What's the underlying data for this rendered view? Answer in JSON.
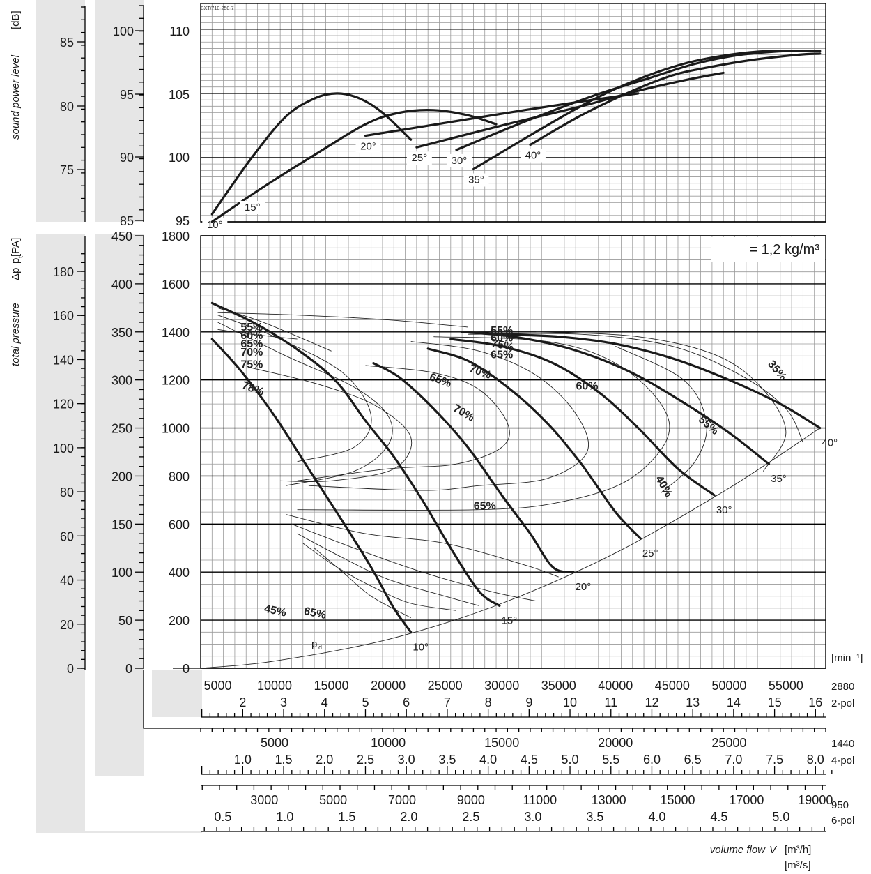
{
  "chart_data": {
    "type": "line",
    "code": "BXT/710-250-7",
    "density_note": "= 1,2 kg/m³",
    "sound_axis_title": "sound power level",
    "sound_axis_unit": "[dB]",
    "pressure_axis_title": "total pressure",
    "pressure_axis_symbol": "Δp",
    "pressure_axis_sub": "t",
    "pressure_axis_unit": "[PA]",
    "flow_axis_title": "volume flow",
    "flow_axis_symbol": "V",
    "flow_unit_h": "[m³/h]",
    "flow_unit_s": "[m³/s]",
    "rpm_unit": "[min⁻¹]",
    "pd_label": "p",
    "pd_sub": "d",
    "sound_scales": [
      {
        "ticks": [
          "85",
          "80",
          "75"
        ]
      },
      {
        "ticks": [
          "100",
          "95",
          "90",
          "85"
        ]
      },
      {
        "ticks": [
          "110",
          "105",
          "100",
          "95"
        ]
      }
    ],
    "pressure_scales": [
      {
        "ticks": [
          "180",
          "160",
          "140",
          "120",
          "100",
          "80",
          "60",
          "40",
          "20",
          "0"
        ]
      },
      {
        "ticks": [
          "450",
          "400",
          "350",
          "300",
          "250",
          "200",
          "150",
          "100",
          "50",
          "0"
        ]
      },
      {
        "ticks": [
          "1800",
          "1600",
          "1400",
          "1200",
          "1000",
          "800",
          "600",
          "400",
          "200",
          "0"
        ]
      }
    ],
    "flow_scales": [
      {
        "rpm": "2880",
        "poles": "2-pol",
        "m3h": [
          "5000",
          "10000",
          "15000",
          "20000",
          "25000",
          "30000",
          "35000",
          "40000",
          "45000",
          "50000",
          "55000"
        ],
        "m3s": [
          "2",
          "3",
          "4",
          "5",
          "6",
          "7",
          "8",
          "9",
          "10",
          "11",
          "12",
          "13",
          "14",
          "15",
          "16"
        ]
      },
      {
        "rpm": "1440",
        "poles": "4-pol",
        "m3h": [
          "5000",
          "10000",
          "15000",
          "20000",
          "25000"
        ],
        "m3s": [
          "1.0",
          "1.5",
          "2.0",
          "2.5",
          "3.0",
          "3.5",
          "4.0",
          "4.5",
          "5.0",
          "5.5",
          "6.0",
          "6.5",
          "7.0",
          "7.5",
          "8.0"
        ]
      },
      {
        "rpm": "950",
        "poles": "6-pol",
        "m3h": [
          "3000",
          "5000",
          "7000",
          "9000",
          "11000",
          "13000",
          "15000",
          "17000",
          "19000"
        ],
        "m3s": [
          "0.5",
          "1.0",
          "1.5",
          "2.0",
          "2.5",
          "3.0",
          "3.5",
          "4.0",
          "4.5",
          "5.0"
        ]
      }
    ],
    "x_label": "volume flow (2-pole, m³/h)",
    "x_range": [
      3500,
      58500
    ],
    "pressure_range_pa": [
      0,
      1800
    ],
    "sound_range_db": [
      95,
      112
    ],
    "pressure_curves": [
      {
        "name": "10°",
        "x": [
          4500,
          7000,
          10000,
          13000,
          16000,
          18500,
          20500,
          22000
        ],
        "y": [
          1370,
          1240,
          1050,
          830,
          610,
          420,
          250,
          150
        ]
      },
      {
        "name": "15°",
        "x": [
          4500,
          8500,
          12500,
          15500,
          18000,
          20500,
          23000,
          25500,
          28000,
          29800
        ],
        "y": [
          1520,
          1430,
          1310,
          1190,
          1030,
          880,
          700,
          500,
          320,
          260
        ]
      },
      {
        "name": "20°",
        "x": [
          18700,
          21000,
          24000,
          27000,
          30000,
          32500,
          34500,
          36300
        ],
        "y": [
          1270,
          1210,
          1080,
          920,
          720,
          560,
          420,
          400
        ]
      },
      {
        "name": "25°",
        "x": [
          23500,
          27000,
          30500,
          34000,
          37000,
          40000,
          42200
        ],
        "y": [
          1330,
          1280,
          1170,
          1020,
          850,
          650,
          540
        ]
      },
      {
        "name": "30°",
        "x": [
          25500,
          30000,
          34500,
          38500,
          42000,
          45500,
          48700
        ],
        "y": [
          1370,
          1340,
          1270,
          1150,
          1000,
          830,
          720
        ]
      },
      {
        "name": "35°",
        "x": [
          26500,
          31000,
          36000,
          41000,
          45500,
          50000,
          53500
        ],
        "y": [
          1400,
          1380,
          1330,
          1240,
          1120,
          980,
          850
        ]
      },
      {
        "name": "40°",
        "x": [
          26500,
          30000,
          35000,
          40000,
          45000,
          50000,
          54500,
          58000
        ],
        "y": [
          1400,
          1390,
          1380,
          1350,
          1290,
          1200,
          1100,
          1000
        ]
      }
    ],
    "efficiency_labels": [
      "55%",
      "60%",
      "65%",
      "70%",
      "75%",
      "78%",
      "65%",
      "70%",
      "75%",
      "55%",
      "60%",
      "65%",
      "70%",
      "65%",
      "60%",
      "55%",
      "35%",
      "40%",
      "45%",
      "65%"
    ],
    "pd_curve": {
      "x": [
        3500,
        10000,
        20000,
        30000,
        40000,
        50000,
        58000
      ],
      "y": [
        0,
        30,
        120,
        270,
        480,
        750,
        1000
      ]
    },
    "sound_curves": [
      {
        "name": "10°",
        "x": [
          4500,
          8000,
          11000,
          13500,
          15500,
          17500,
          19500,
          22000
        ],
        "y": [
          95.6,
          100,
          103.2,
          104.6,
          105,
          104.6,
          103.5,
          101.4
        ]
      },
      {
        "name": "15°",
        "x": [
          4500,
          9000,
          13500,
          18000,
          21000,
          24000,
          27000,
          29500
        ],
        "y": [
          95,
          97.7,
          100.2,
          102.6,
          103.5,
          103.7,
          103.3,
          102.6
        ]
      },
      {
        "name": "20°",
        "x": [
          18000,
          25000,
          32000,
          38000,
          42000
        ],
        "y": [
          101.7,
          102.7,
          103.7,
          104.5,
          105
        ]
      },
      {
        "name": "25°",
        "x": [
          22500,
          30000,
          37000,
          42000,
          46500,
          49500
        ],
        "y": [
          100.8,
          102.5,
          104,
          105.2,
          106.1,
          106.6
        ]
      },
      {
        "name": "30°",
        "x": [
          26000,
          32000,
          38000,
          43000,
          47000,
          51000,
          55000,
          57500
        ],
        "y": [
          100.6,
          102.8,
          104.8,
          106.2,
          107.3,
          108,
          108.3,
          108.3
        ]
      },
      {
        "name": "35°",
        "x": [
          27500,
          33000,
          38000,
          42000,
          46000,
          50000,
          53500,
          58000
        ],
        "y": [
          99.1,
          102,
          104.5,
          106.1,
          107.3,
          108,
          108.3,
          108.3
        ]
      },
      {
        "name": "40°",
        "x": [
          32500,
          37000,
          41500,
          45000,
          48000,
          52000,
          56000,
          58000
        ],
        "y": [
          101,
          103.3,
          105.2,
          106.4,
          107,
          107.6,
          108,
          108.1
        ]
      }
    ]
  }
}
